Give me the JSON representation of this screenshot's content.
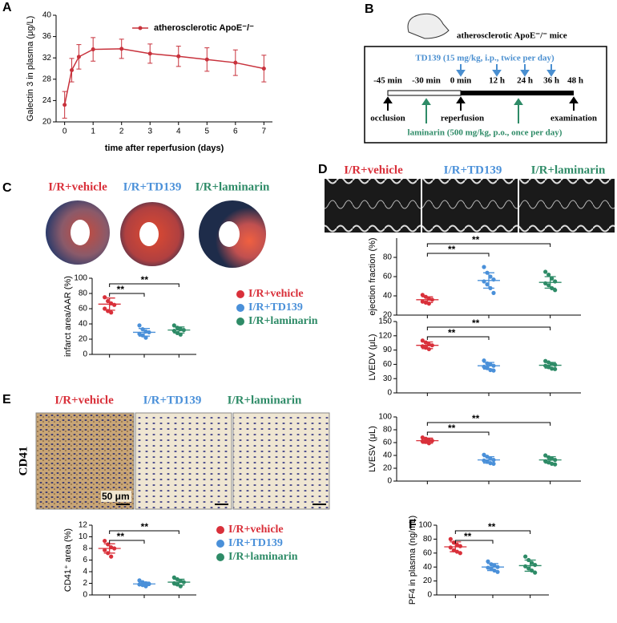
{
  "panel_labels": [
    "A",
    "B",
    "C",
    "D",
    "E",
    "F"
  ],
  "chart_data": [
    {
      "type": "line",
      "ylabel": "Galectin 3 in plasma (μg/L)",
      "xlabel": "time after reperfusion (days)",
      "x": [
        0,
        0.25,
        0.5,
        1,
        2,
        3,
        4,
        5,
        6,
        7
      ],
      "xlim": [
        -0.3,
        7.3
      ],
      "xticks": [
        0,
        1,
        2,
        3,
        4,
        5,
        6,
        7
      ],
      "ylim": [
        20,
        40
      ],
      "yticks": [
        20,
        24,
        28,
        32,
        36,
        40
      ],
      "series": [
        {
          "name": "atherosclerotic ApoE⁻/⁻",
          "color": "#c8323c",
          "values": [
            23.2,
            29.7,
            32.2,
            33.6,
            33.7,
            32.8,
            32.3,
            31.7,
            31.1,
            30.0
          ],
          "errors": [
            2.5,
            2.2,
            2.3,
            2.2,
            1.8,
            1.8,
            1.9,
            2.2,
            2.4,
            2.5
          ]
        }
      ]
    },
    {
      "type": "dot",
      "ylabel": "infarct area/AAR (%)",
      "ylim": [
        0,
        100
      ],
      "yticks": [
        0,
        20,
        40,
        60,
        80,
        100
      ],
      "annotations": [
        "**",
        "**"
      ],
      "series": [
        {
          "name": "I/R+vehicle",
          "color": "#d9303a",
          "points": [
            75,
            70,
            67,
            65,
            60,
            57,
            55
          ],
          "mean": 66,
          "sd": 8
        },
        {
          "name": "I/R+TD139",
          "color": "#4a90d9",
          "points": [
            38,
            33,
            30,
            29,
            27,
            25,
            22
          ],
          "mean": 29,
          "sd": 5
        },
        {
          "name": "I/R+laminarin",
          "color": "#2e8b67",
          "points": [
            38,
            35,
            33,
            32,
            31,
            28,
            26
          ],
          "mean": 32,
          "sd": 4
        }
      ]
    },
    {
      "type": "dot",
      "ylabel": "ejection fraction (%)",
      "ylim": [
        20,
        100
      ],
      "yticks": [
        20,
        40,
        60,
        80
      ],
      "annotations": [
        "**",
        "**"
      ],
      "series": [
        {
          "color": "#d9303a",
          "points": [
            41,
            39,
            37,
            36,
            34,
            33,
            32
          ],
          "mean": 36,
          "sd": 3
        },
        {
          "color": "#4a90d9",
          "points": [
            70,
            64,
            60,
            57,
            55,
            52,
            48,
            43
          ],
          "mean": 56,
          "sd": 8
        },
        {
          "color": "#2e8b67",
          "points": [
            65,
            62,
            58,
            55,
            53,
            51,
            48,
            46
          ],
          "mean": 54,
          "sd": 6
        }
      ]
    },
    {
      "type": "dot",
      "ylabel": "LVEDV (μL)",
      "ylim": [
        0,
        150
      ],
      "yticks": [
        0,
        30,
        60,
        90,
        120,
        150
      ],
      "annotations": [
        "**",
        "**"
      ],
      "series": [
        {
          "color": "#d9303a",
          "points": [
            110,
            106,
            102,
            100,
            98,
            95,
            92
          ],
          "mean": 100,
          "sd": 7
        },
        {
          "color": "#4a90d9",
          "points": [
            68,
            62,
            60,
            57,
            55,
            52,
            48,
            47
          ],
          "mean": 57,
          "sd": 7
        },
        {
          "color": "#2e8b67",
          "points": [
            67,
            64,
            61,
            59,
            57,
            54,
            51,
            50
          ],
          "mean": 58,
          "sd": 6
        }
      ]
    },
    {
      "type": "dot",
      "ylabel": "LVESV (μL)",
      "ylim": [
        0,
        100
      ],
      "yticks": [
        0,
        20,
        40,
        60,
        80,
        100
      ],
      "annotations": [
        "**",
        "**"
      ],
      "series": [
        {
          "color": "#d9303a",
          "points": [
            68,
            66,
            64,
            63,
            62,
            61,
            59
          ],
          "mean": 63,
          "sd": 4
        },
        {
          "color": "#4a90d9",
          "points": [
            41,
            38,
            35,
            33,
            32,
            30,
            28,
            27
          ],
          "mean": 33,
          "sd": 5
        },
        {
          "color": "#2e8b67",
          "points": [
            40,
            37,
            35,
            33,
            31,
            29,
            27,
            26
          ],
          "mean": 33,
          "sd": 5
        }
      ]
    },
    {
      "type": "dot",
      "ylabel": "CD41⁺ area (%)",
      "ylim": [
        0,
        12
      ],
      "yticks": [
        0,
        2,
        4,
        6,
        8,
        10,
        12
      ],
      "annotations": [
        "**",
        "**"
      ],
      "series": [
        {
          "name": "I/R+vehicle",
          "color": "#d9303a",
          "points": [
            9.3,
            8.7,
            8.2,
            8,
            7.7,
            7.2,
            6.6
          ],
          "mean": 8,
          "sd": 0.8
        },
        {
          "name": "I/R+TD139",
          "color": "#4a90d9",
          "points": [
            2.5,
            2.2,
            2,
            1.9,
            1.8,
            1.7,
            1.5
          ],
          "mean": 1.9,
          "sd": 0.3
        },
        {
          "name": "I/R+laminarin",
          "color": "#2e8b67",
          "points": [
            3,
            2.7,
            2.4,
            2.2,
            2,
            1.8,
            1.5
          ],
          "mean": 2.2,
          "sd": 0.5
        }
      ]
    },
    {
      "type": "dot",
      "ylabel": "PF4 in plasma (ng/mL)",
      "ylim": [
        0,
        100
      ],
      "yticks": [
        0,
        20,
        40,
        60,
        80,
        100
      ],
      "annotations": [
        "**",
        "**"
      ],
      "series": [
        {
          "color": "#d9303a",
          "points": [
            80,
            75,
            72,
            70,
            68,
            64,
            62,
            60
          ],
          "mean": 69,
          "sd": 7
        },
        {
          "color": "#4a90d9",
          "points": [
            48,
            44,
            42,
            40,
            39,
            37,
            35,
            33
          ],
          "mean": 40,
          "sd": 5
        },
        {
          "color": "#2e8b67",
          "points": [
            55,
            50,
            46,
            43,
            41,
            38,
            35,
            32
          ],
          "mean": 42,
          "sd": 8
        }
      ]
    }
  ],
  "diagram": {
    "subject": "atherosclerotic ApoE⁻/⁻ mice",
    "treatment_top": "TD139 (15 mg/kg, i.p., twice per day)",
    "treatment_bottom": "laminarin (500 mg/kg, p.o., once per day)",
    "times": [
      "-45 min",
      "-30 min",
      "0 min",
      "12 h",
      "24 h",
      "36 h",
      "48 h"
    ],
    "events": [
      "occlusion",
      "reperfusion",
      "examination"
    ]
  },
  "images": {
    "C": [
      "I/R+vehicle",
      "I/R+TD139",
      "I/R+laminarin"
    ],
    "D": [
      "I/R+vehicle",
      "I/R+TD139",
      "I/R+laminarin"
    ],
    "E": [
      "I/R+vehicle",
      "I/R+TD139",
      "I/R+laminarin"
    ],
    "stain": "CD41",
    "scale": "50 μm"
  }
}
